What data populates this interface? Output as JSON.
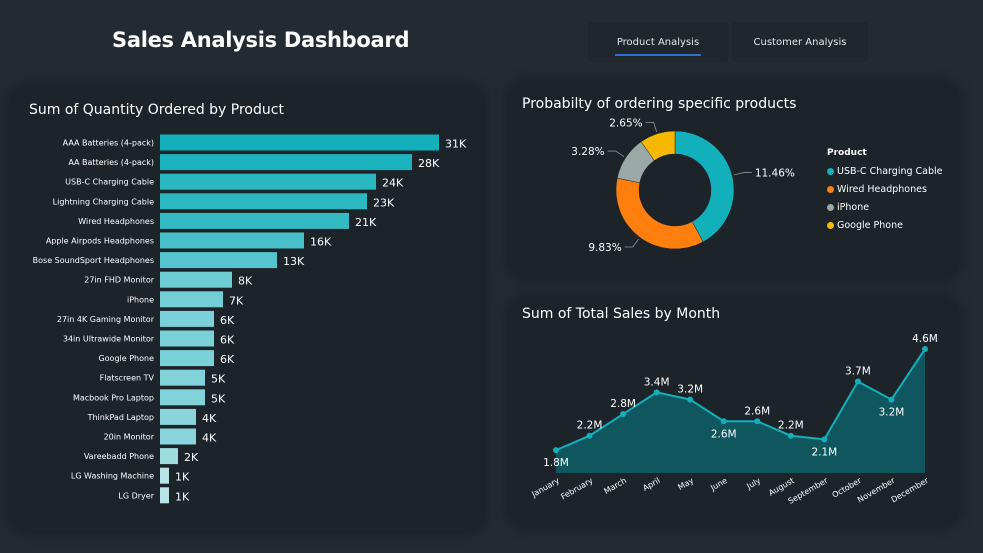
{
  "dashboard": {
    "title": "Sales Analysis Dashboard",
    "tabs": [
      {
        "label": "Product Analysis",
        "active": true
      },
      {
        "label": "Customer Analysis",
        "active": false
      }
    ]
  },
  "colors": {
    "background": "#232a31",
    "panel": "#1c2329",
    "teal": "#12b0ba",
    "orange": "#ff7f0e",
    "gray": "#9aa8a6",
    "yellow": "#f6b800",
    "tab_underline": "#2f6fd0"
  },
  "chart_data": [
    {
      "type": "bar",
      "orientation": "horizontal",
      "title": "Sum of Quantity Ordered by Product",
      "categories": [
        "AAA Batteries (4-pack)",
        "AA Batteries (4-pack)",
        "USB-C Charging Cable",
        "Lightning Charging Cable",
        "Wired Headphones",
        "Apple Airpods Headphones",
        "Bose SoundSport Headphones",
        "27in FHD Monitor",
        "iPhone",
        "27in 4K Gaming Monitor",
        "34in Ultrawide Monitor",
        "Google Phone",
        "Flatscreen TV",
        "Macbook Pro Laptop",
        "ThinkPad Laptop",
        "20in Monitor",
        "Vareebadd Phone",
        "LG Washing Machine",
        "LG Dryer"
      ],
      "values": [
        31000,
        28000,
        24000,
        23000,
        21000,
        16000,
        13000,
        8000,
        7000,
        6000,
        6000,
        6000,
        5000,
        5000,
        4000,
        4000,
        2000,
        1000,
        1000
      ],
      "data_labels": [
        "31K",
        "28K",
        "24K",
        "23K",
        "21K",
        "16K",
        "13K",
        "8K",
        "7K",
        "6K",
        "6K",
        "6K",
        "5K",
        "5K",
        "4K",
        "4K",
        "2K",
        "1K",
        "1K"
      ],
      "color_scale": [
        "#b8e4e8",
        "#12b0ba"
      ]
    },
    {
      "type": "pie",
      "variant": "donut",
      "title": "Probabilty of ordering specific products",
      "legend_title": "Product",
      "legend_position": "right",
      "slices": [
        {
          "name": "USB-C Charging Cable",
          "value": 11.46,
          "label": "11.46%",
          "color": "#12b0ba"
        },
        {
          "name": "Wired Headphones",
          "value": 9.83,
          "label": "9.83%",
          "color": "#ff7f0e"
        },
        {
          "name": "iPhone",
          "value": 3.28,
          "label": "3.28%",
          "color": "#9aa8a6"
        },
        {
          "name": "Google Phone",
          "value": 2.65,
          "label": "2.65%",
          "color": "#f6b800"
        }
      ]
    },
    {
      "type": "area",
      "title": "Sum of Total Sales by Month",
      "categories": [
        "January",
        "February",
        "March",
        "April",
        "May",
        "June",
        "July",
        "August",
        "September",
        "October",
        "November",
        "December"
      ],
      "values": [
        1.8,
        2.2,
        2.8,
        3.4,
        3.2,
        2.6,
        2.6,
        2.2,
        2.1,
        3.7,
        3.2,
        4.6
      ],
      "data_labels": [
        "1.8M",
        "2.2M",
        "2.8M",
        "3.4M",
        "3.2M",
        "2.6M",
        "2.6M",
        "2.2M",
        "2.1M",
        "3.7M",
        "3.2M",
        "4.6M"
      ],
      "unit": "M",
      "ylim": [
        1.5,
        4.6
      ]
    }
  ]
}
